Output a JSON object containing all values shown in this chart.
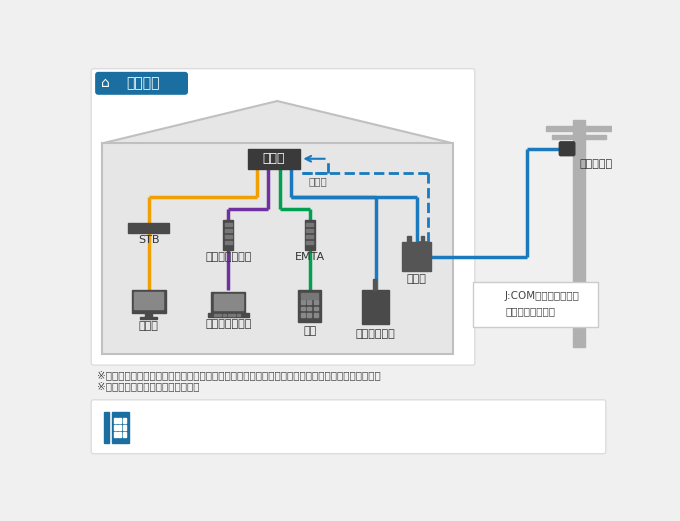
{
  "bg_color": "#f0f0f0",
  "title_text": "戸建住宅",
  "title_bg": "#1a6fa0",
  "title_fg": "#ffffff",
  "note_line1": "※工事方法により、エアコンダクトの穴か壁に穴を開ける施工をいたします。予めご了承ください。",
  "note_line2": "※責任分岐点は保安器となります。",
  "legend_solid": "J:COMで配線する部分",
  "legend_dashed": "既設配線利用部分",
  "color_stb": "#f0a000",
  "color_modem": "#7030a0",
  "color_emta": "#00a050",
  "color_main": "#1a7abd",
  "label_splitter": "分配器",
  "label_amplifier": "増幅器",
  "label_tapoff": "タップオフ",
  "label_protector": "保安器",
  "label_stb": "STB",
  "label_modem": "ケーブルモデム",
  "label_emta": "EMTA",
  "label_tv": "テレビ",
  "label_internet": "インターネット",
  "label_phone": "電話",
  "label_emergency": "緊急地震速報"
}
